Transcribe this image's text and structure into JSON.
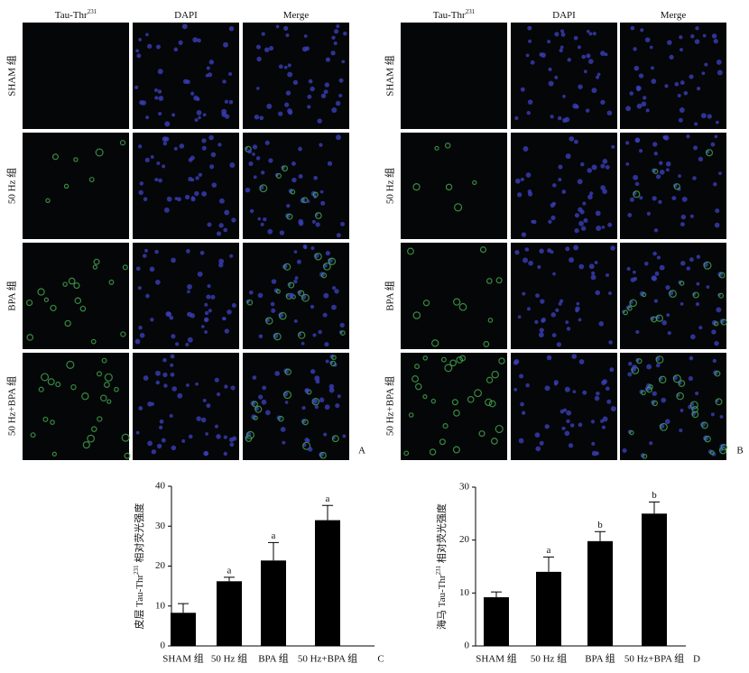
{
  "figure": {
    "panels": [
      {
        "label": "A",
        "columns": [
          {
            "text": "Tau-Thr",
            "sup": "231"
          },
          {
            "text": "DAPI"
          },
          {
            "text": "Merge"
          }
        ],
        "rows": [
          "SHAM 组",
          "50 Hz 组",
          "BPA 组",
          "50 Hz+BPA 组"
        ]
      },
      {
        "label": "B",
        "columns": [
          {
            "text": "Tau-Thr",
            "sup": "231"
          },
          {
            "text": "DAPI"
          },
          {
            "text": "Merge"
          }
        ],
        "rows": [
          "SHAM 组",
          "50 Hz 组",
          "BPA 组",
          "50 Hz+BPA 组"
        ]
      }
    ]
  },
  "chart_data": [
    {
      "type": "bar",
      "panel_label": "C",
      "y_label": {
        "text": "皮层 Tau-Thr",
        "sup": "231",
        "suffix": " 相对荧光强度"
      },
      "categories": [
        "SHAM 组",
        "50 Hz 组",
        "BPA 组",
        "50 Hz+BPA 组"
      ],
      "values": [
        8.3,
        16.2,
        21.4,
        31.5
      ],
      "errors": [
        2.3,
        1.0,
        4.5,
        3.7
      ],
      "annotations": [
        null,
        "a",
        "a",
        "a"
      ],
      "color": "#000000",
      "ylim": [
        0,
        40
      ],
      "yticks": [
        0,
        10,
        20,
        30,
        40
      ]
    },
    {
      "type": "bar",
      "panel_label": "D",
      "y_label": {
        "text": "海马 Tau-Thr",
        "sup": "231",
        "suffix": " 相对荧光强度"
      },
      "categories": [
        "SHAM 组",
        "50 Hz 组",
        "BPA 组",
        "50 Hz+BPA 组"
      ],
      "values": [
        9.2,
        14.0,
        19.8,
        25.0
      ],
      "errors": [
        1.0,
        2.8,
        1.8,
        2.2
      ],
      "annotations": [
        null,
        "a",
        "b",
        "b"
      ],
      "color": "#000000",
      "ylim": [
        0,
        30
      ],
      "yticks": [
        0,
        10,
        20,
        30
      ]
    }
  ]
}
